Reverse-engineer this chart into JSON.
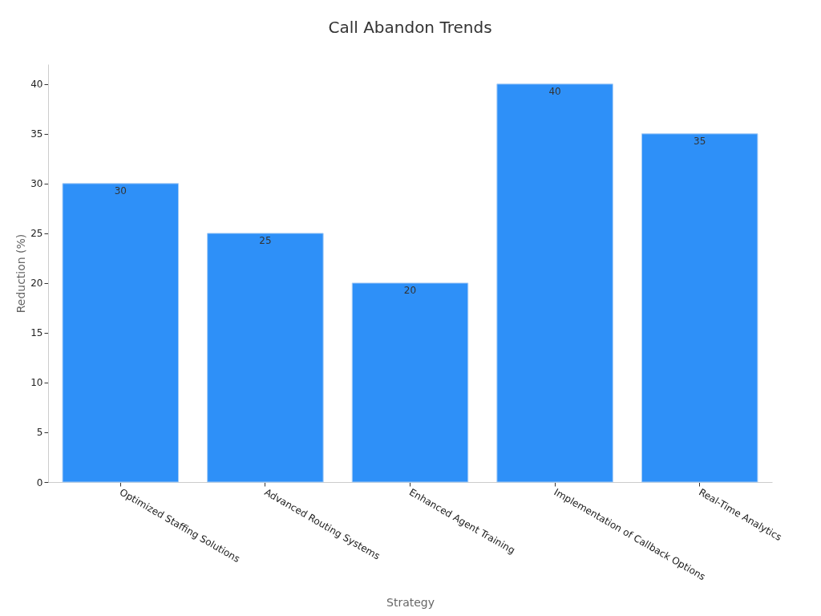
{
  "chart_data": {
    "type": "bar",
    "title": "Call Abandon Trends",
    "xlabel": "Strategy",
    "ylabel": "Reduction (%)",
    "categories": [
      "Optimized Staffing Solutions",
      "Advanced Routing Systems",
      "Enhanced Agent Training",
      "Implementation of Callback Options",
      "Real-Time Analytics"
    ],
    "values": [
      30,
      25,
      20,
      40,
      35
    ],
    "color": "#2e90f8",
    "ylim": [
      0,
      42
    ],
    "yticks": [
      0,
      5,
      10,
      15,
      20,
      25,
      30,
      35,
      40
    ],
    "grid": false,
    "data_labels": true
  }
}
